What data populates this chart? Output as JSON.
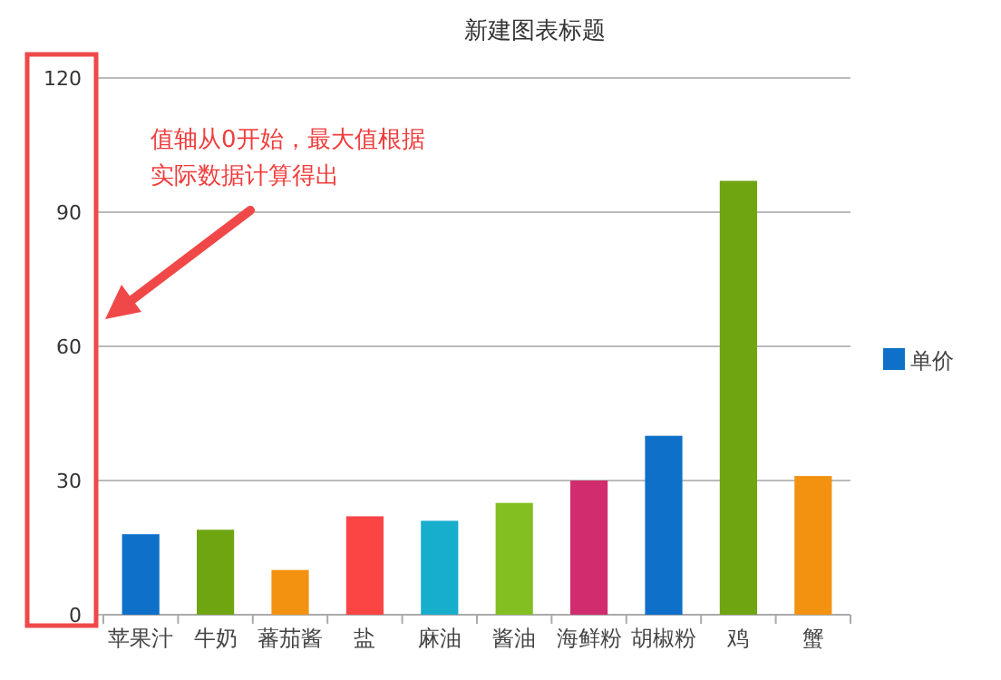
{
  "chart_data": {
    "type": "bar",
    "title": "新建图表标题",
    "categories": [
      "苹果汁",
      "牛奶",
      "蕃茄酱",
      "盐",
      "麻油",
      "酱油",
      "海鲜粉",
      "胡椒粉",
      "鸡",
      "蟹"
    ],
    "series": [
      {
        "name": "单价",
        "color": "#0e70c9",
        "colors": [
          "#0e70c9",
          "#6ea511",
          "#f39211",
          "#fb4444",
          "#17aecc",
          "#83bf21",
          "#d12d6e",
          "#0e70c9",
          "#6ea511",
          "#f39211"
        ],
        "values": [
          18,
          19,
          10,
          22,
          21,
          25,
          30,
          40,
          97,
          31
        ]
      }
    ],
    "ylim": [
      0,
      120
    ],
    "yticks": [
      0,
      30,
      60,
      90,
      120
    ],
    "grid": "y",
    "legend": "right",
    "annotations": [
      "值轴从0开始，最大值根据实际数据计算得出"
    ]
  }
}
